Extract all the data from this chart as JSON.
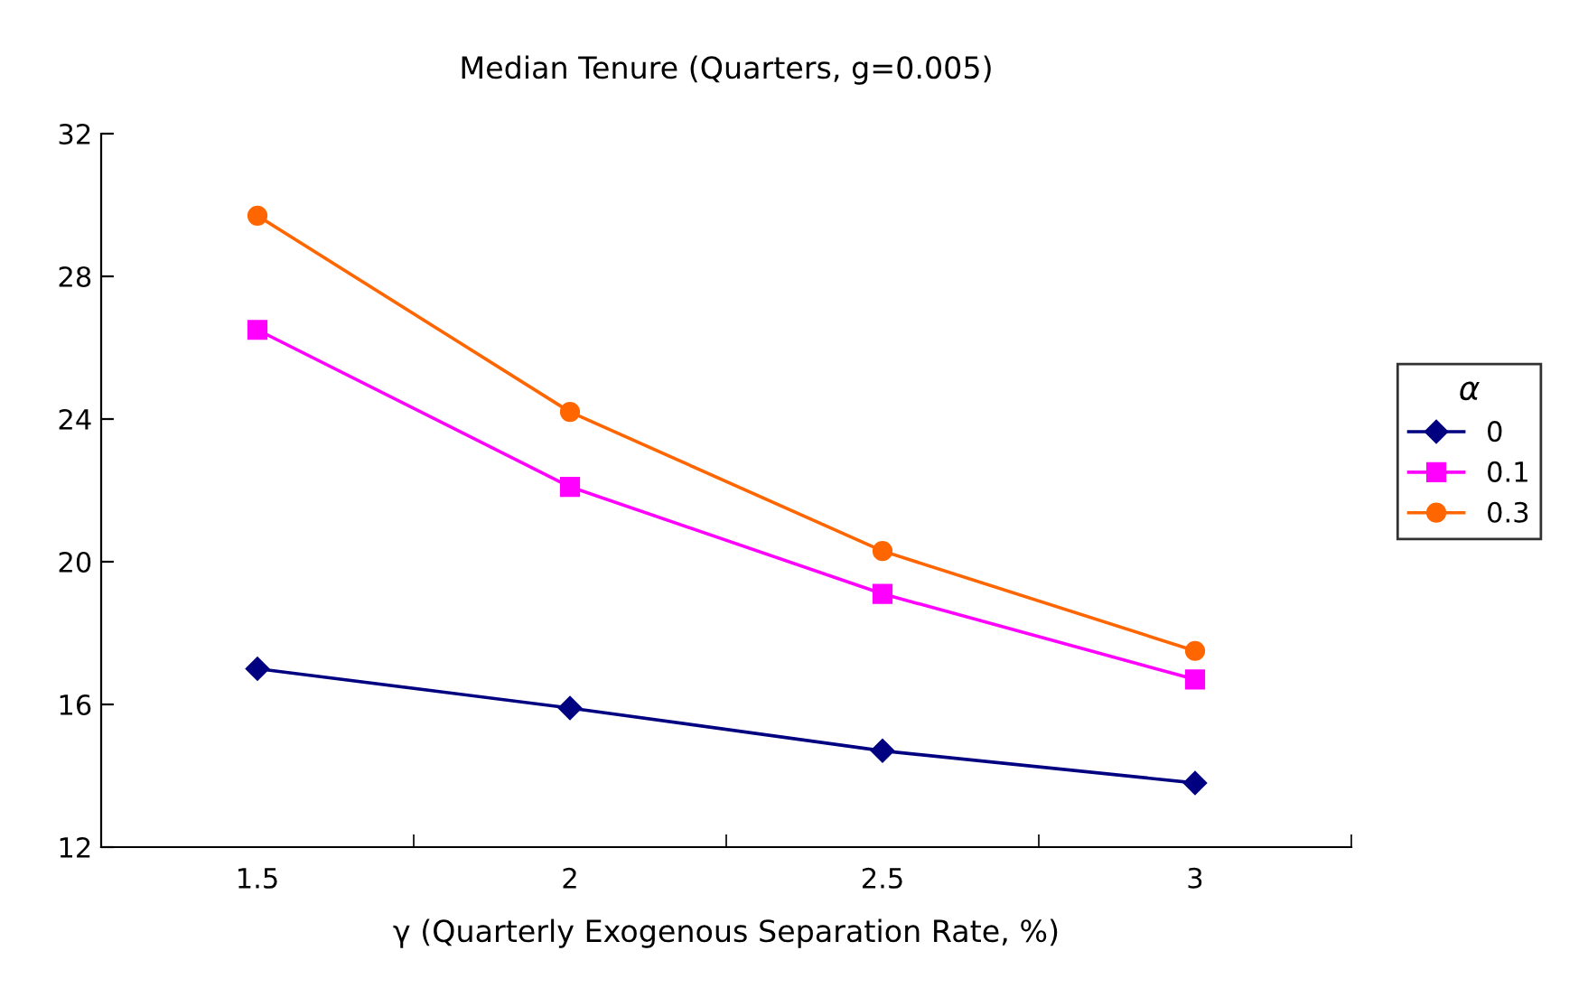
{
  "chart_data": {
    "type": "line",
    "title": "Median Tenure (Quarters, g=0.005)",
    "xlabel": "γ (Quarterly Exogenous Separation Rate, %)",
    "legend_title": "α",
    "categories": [
      "1.5",
      "2",
      "2.5",
      "3"
    ],
    "series": [
      {
        "name": "0",
        "color": "#000080",
        "marker": "diamond",
        "values": [
          17.0,
          15.9,
          14.7,
          13.8
        ]
      },
      {
        "name": "0.1",
        "color": "#ff00ff",
        "marker": "square",
        "values": [
          26.5,
          22.1,
          19.1,
          16.7
        ]
      },
      {
        "name": "0.3",
        "color": "#ff6600",
        "marker": "circle",
        "values": [
          29.7,
          24.2,
          20.3,
          17.5
        ]
      }
    ],
    "ylim": [
      12,
      32
    ],
    "yticks": [
      12,
      16,
      20,
      24,
      28,
      32
    ],
    "grid": false,
    "legend": "right",
    "line_style": "solid"
  }
}
